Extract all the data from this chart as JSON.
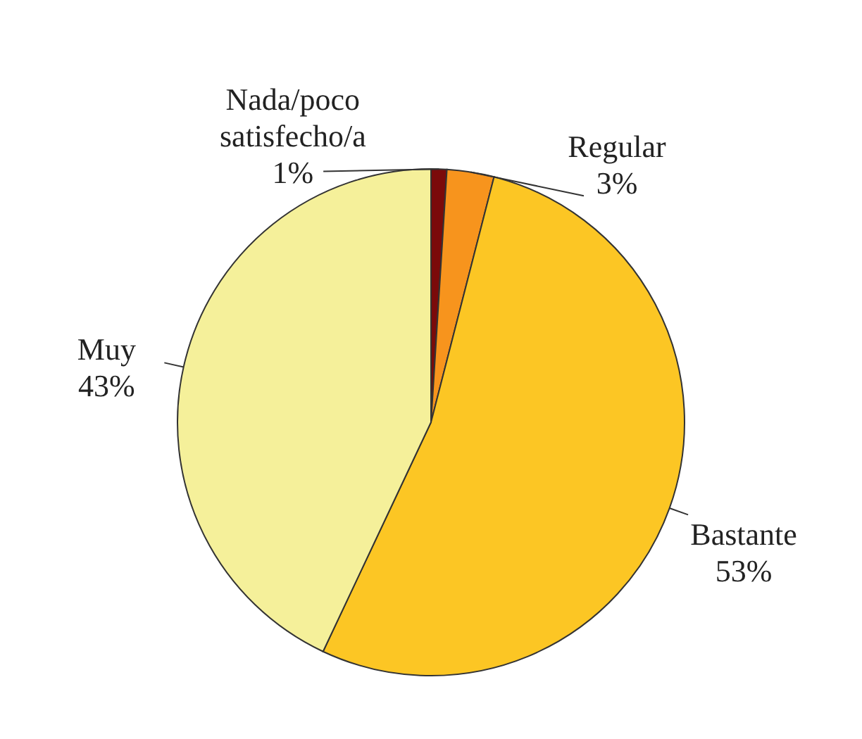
{
  "chart_data": {
    "type": "pie",
    "categories": [
      "Nada/poco satisfecho/a",
      "Regular",
      "Bastante",
      "Muy"
    ],
    "values": [
      1,
      3,
      53,
      43
    ],
    "value_labels": [
      "1%",
      "3%",
      "53%",
      "43%"
    ],
    "colors": [
      "#7b0a0a",
      "#f7941d",
      "#fcc624",
      "#f5f09a"
    ]
  }
}
